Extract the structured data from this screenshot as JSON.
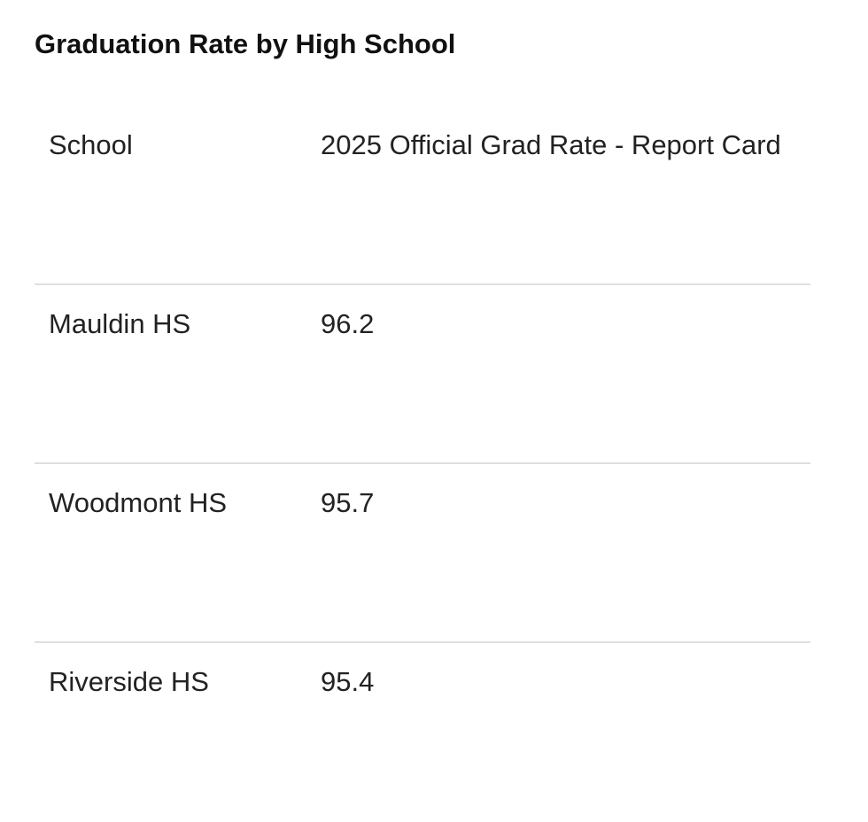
{
  "chart_data": {
    "type": "table",
    "title": "Graduation Rate by High School",
    "columns": [
      "School",
      "2025 Official Grad Rate - Report Card"
    ],
    "rows": [
      {
        "school": "Mauldin HS",
        "rate": "96.2"
      },
      {
        "school": "Woodmont HS",
        "rate": "95.7"
      },
      {
        "school": "Riverside HS",
        "rate": "95.4"
      }
    ]
  }
}
